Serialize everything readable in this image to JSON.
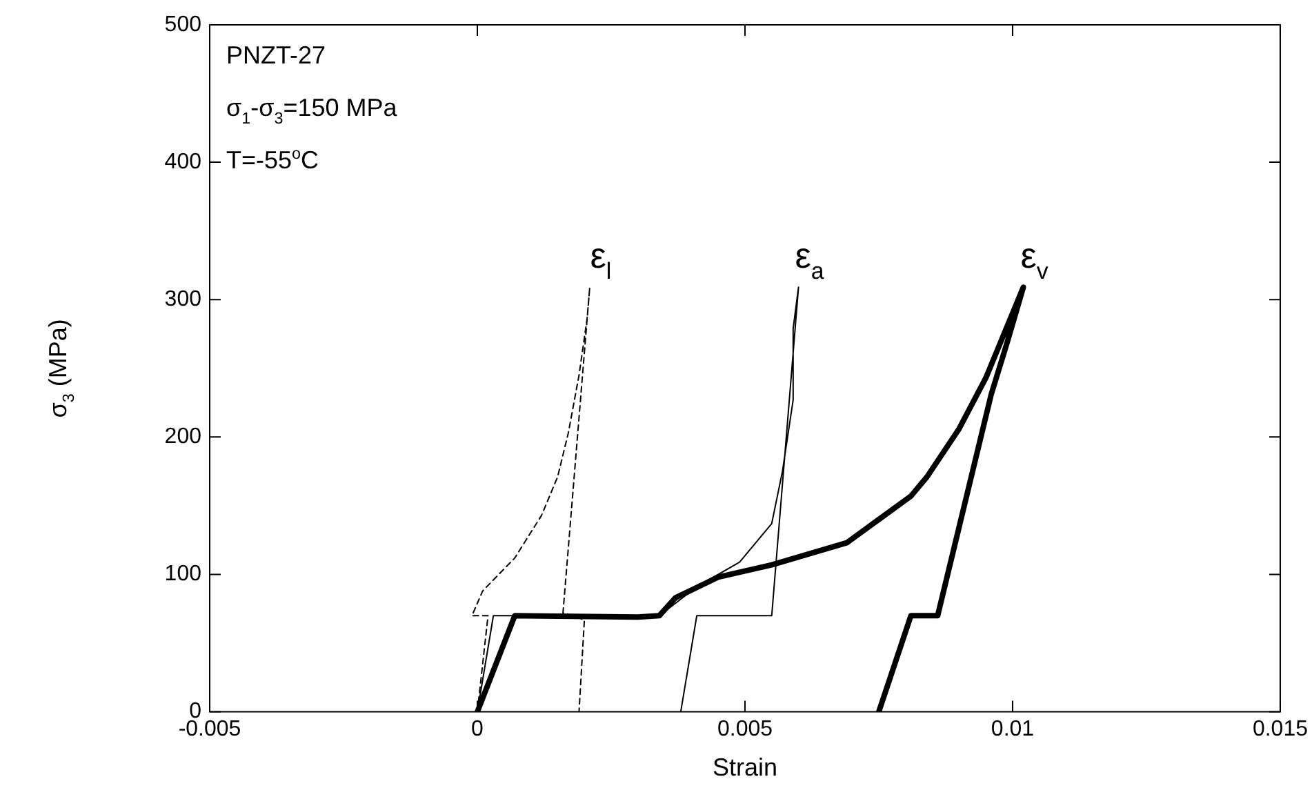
{
  "chart_data": {
    "type": "line",
    "xlabel": "Strain",
    "ylabel": "σ$_{3}$ (MPa)",
    "xlim": [
      -0.005,
      0.015
    ],
    "xticks": [
      -0.005,
      0,
      0.005,
      0.01,
      0.015
    ],
    "ylim": [
      0,
      500
    ],
    "yticks": [
      0,
      100,
      200,
      300,
      400,
      500
    ],
    "grid": false,
    "legend": false,
    "marker": "none",
    "annotations": [
      "PNZT-27",
      "σ$_{1}$-σ$_{3}$=150 MPa",
      "T=-55$^{o}$C"
    ],
    "series": [
      {
        "name": "ε$_{l}$",
        "color": "#000000",
        "line_style": "dashed",
        "x": [
          0,
          0.0002,
          -0.0001,
          0.0001,
          0.0007,
          0.0012,
          0.0015,
          0.0017,
          0.0019,
          0.00205,
          0.0021,
          0.0016,
          0.002,
          0.0019
        ],
        "values": [
          0,
          70,
          70,
          88,
          112,
          143,
          171,
          203,
          245,
          286,
          309,
          72,
          67,
          0
        ]
      },
      {
        "name": "ε$_{a}$",
        "color": "#000000",
        "line_style": "solid",
        "x": [
          0,
          0.0003,
          0.0034,
          0.0041,
          0.0049,
          0.0055,
          0.0057,
          0.0059,
          0.0059,
          0.006,
          0.0055,
          0.0041,
          0.0038
        ],
        "values": [
          0,
          70,
          70,
          91,
          109,
          137,
          175,
          227,
          279,
          309,
          70,
          70,
          0
        ]
      },
      {
        "name": "ε$_{v}$",
        "color": "#000000",
        "line_style": "solid",
        "x": [
          0,
          0.0007,
          0.003,
          0.0034,
          0.0037,
          0.0045,
          0.0055,
          0.0069,
          0.0081,
          0.0084,
          0.009,
          0.0095,
          0.0102,
          0.0099,
          0.0096,
          0.0086,
          0.0081,
          0.0075
        ],
        "values": [
          0,
          70,
          69,
          70,
          83,
          98,
          107,
          123,
          157,
          171,
          206,
          243,
          309,
          269,
          231,
          70,
          70,
          0
        ]
      }
    ]
  }
}
